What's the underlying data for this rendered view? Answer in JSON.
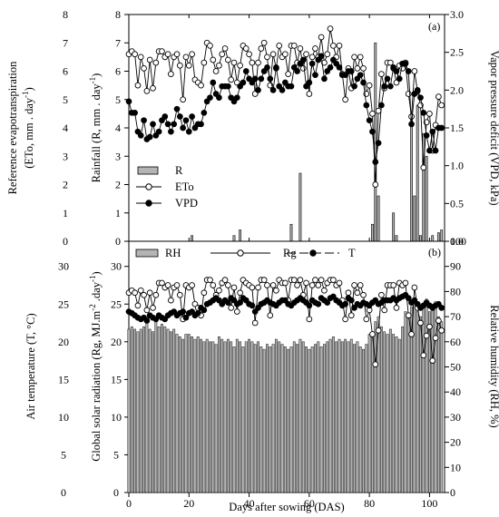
{
  "chart_data": [
    {
      "panel": "(a)",
      "type": "line",
      "left_axis_primary": {
        "label_line1": "Reference evapotranspiration",
        "label_line2": "(ETo, mm . day",
        "label_sup": "-1",
        "label_end": ")",
        "ylim": [
          0,
          8
        ],
        "ticks": [
          0,
          1,
          2,
          3,
          4,
          5,
          6,
          7,
          8
        ]
      },
      "left_axis_secondary": {
        "label": "Rainfall (R, mm . day",
        "label_sup": "-1",
        "label_end": ")",
        "ylim": [
          0,
          8
        ],
        "ticks": [
          0,
          1,
          2,
          3,
          4,
          5,
          6,
          7,
          8
        ]
      },
      "right_axis": {
        "label": "Vapor pressure deficit (VPD, kPa)",
        "ylim": [
          0,
          3.0
        ],
        "ticks": [
          "0.0",
          "0.5",
          "1.0",
          "1.5",
          "2.0",
          "2.5",
          "3.0"
        ]
      },
      "xlim": [
        0,
        105
      ],
      "x_ticks": [
        0,
        20,
        40,
        60,
        80,
        100
      ],
      "legend": [
        "R",
        "ETo",
        "VPD"
      ],
      "series": [
        {
          "name": "R",
          "kind": "bar",
          "x": [
            21,
            35,
            37,
            54,
            57,
            81,
            82,
            83,
            88,
            89,
            94,
            95,
            96,
            97,
            98,
            99,
            101,
            103,
            104
          ],
          "values": [
            0.2,
            0.2,
            0.4,
            0.6,
            2.4,
            0.6,
            7.0,
            1.6,
            1.0,
            0.2,
            4.4,
            1.6,
            4.8,
            0.2,
            3.8,
            3.0,
            0.2,
            0.3,
            0.4
          ]
        },
        {
          "name": "ETo",
          "kind": "line",
          "marker": "open-circle",
          "x_start": 0,
          "values": [
            6.6,
            6.7,
            6.6,
            5.5,
            6.5,
            6.1,
            5.3,
            6.4,
            5.4,
            6.3,
            6.7,
            6.7,
            6.5,
            6.6,
            5.9,
            6.5,
            6.6,
            6.2,
            5.0,
            6.5,
            6.2,
            6.6,
            5.7,
            5.6,
            5.5,
            6.3,
            7.0,
            6.9,
            6.4,
            6.0,
            6.2,
            6.6,
            6.8,
            6.4,
            5.7,
            6.3,
            5.6,
            6.2,
            6.9,
            6.8,
            6.6,
            6.3,
            5.2,
            6.3,
            6.8,
            7.0,
            6.5,
            5.5,
            6.6,
            6.1,
            6.9,
            6.5,
            6.6,
            5.9,
            6.9,
            6.9,
            6.3,
            6.8,
            6.1,
            6.6,
            5.2,
            6.5,
            6.8,
            6.5,
            7.2,
            6.3,
            6.6,
            7.5,
            6.9,
            6.5,
            6.9,
            5.9,
            5.0,
            6.1,
            5.4,
            6.5,
            6.1,
            6.5,
            6.1,
            5.2,
            5.5,
            4.5,
            2.0,
            4.6,
            5.9,
            5.4,
            6.3,
            6.3,
            6.1,
            5.6,
            6.2,
            6.1,
            6.3,
            5.2,
            4.4,
            6.0,
            5.3,
            4.8,
            2.6,
            4.2,
            4.5,
            3.2,
            4.1,
            5.1,
            4.8
          ]
        },
        {
          "name": "VPD",
          "kind": "line",
          "marker": "filled-circle",
          "x_start": 0,
          "values": [
            1.85,
            1.7,
            1.7,
            1.45,
            1.4,
            1.6,
            1.35,
            1.38,
            1.55,
            1.4,
            1.45,
            1.6,
            1.65,
            1.55,
            1.45,
            1.55,
            1.75,
            1.65,
            1.5,
            1.6,
            1.45,
            1.65,
            1.5,
            1.55,
            1.55,
            1.7,
            1.85,
            1.9,
            2.1,
            1.95,
            1.9,
            2.05,
            2.05,
            2.05,
            1.9,
            1.85,
            1.9,
            2.05,
            2.1,
            2.25,
            2.15,
            2.1,
            2.15,
            2.0,
            2.15,
            2.25,
            2.3,
            2.15,
            2.0,
            2.3,
            2.05,
            2.0,
            2.1,
            2.05,
            2.05,
            2.3,
            2.25,
            2.35,
            2.4,
            2.05,
            2.1,
            2.35,
            2.2,
            2.4,
            2.45,
            2.15,
            2.25,
            2.3,
            2.4,
            2.35,
            2.3,
            2.2,
            2.2,
            2.25,
            2.25,
            2.05,
            2.15,
            2.2,
            2.1,
            1.8,
            1.6,
            1.45,
            1.05,
            1.3,
            1.8,
            2.05,
            2.15,
            2.05,
            2.3,
            2.25,
            2.15,
            2.35,
            2.35,
            2.25,
            1.55,
            1.95,
            2.0,
            1.9,
            1.7,
            1.4,
            1.2,
            1.45,
            1.2,
            1.5,
            1.5
          ]
        }
      ]
    },
    {
      "panel": "(b)",
      "type": "bar+line",
      "left_axis_primary": {
        "label": "Air temperature (T, °C)",
        "ylim": [
          0,
          30
        ],
        "ticks": [
          0,
          5,
          10,
          15,
          20,
          25,
          30
        ]
      },
      "left_axis_secondary": {
        "label_start": "Global solar radiation (Rg, MJ.m",
        "label_sup1": "-2",
        "label_mid": " .day",
        "label_sup2": "-1",
        "label_end": ")"
      },
      "right_axis": {
        "label": "Relative humidity (RH, %)",
        "ylim": [
          0,
          100
        ],
        "ticks": [
          0,
          10,
          20,
          30,
          40,
          50,
          60,
          70,
          80,
          90,
          100
        ]
      },
      "xlabel": "Days after sowing (DAS)",
      "xlim": [
        0,
        105
      ],
      "x_ticks": [
        0,
        20,
        40,
        60,
        80,
        100
      ],
      "legend": [
        "RH",
        "Rg",
        "T"
      ],
      "series": [
        {
          "name": "RH",
          "kind": "bar",
          "axis": "right",
          "x_start": 0,
          "values": [
            65,
            66,
            65,
            64,
            65,
            66,
            70,
            65,
            64,
            68,
            66,
            67,
            66,
            65,
            64,
            65,
            63,
            62,
            61,
            63,
            63,
            62,
            61,
            62,
            61,
            60,
            61,
            60,
            60,
            59,
            62,
            61,
            60,
            61,
            60,
            58,
            61,
            60,
            58,
            60,
            61,
            60,
            59,
            60,
            58,
            57,
            59,
            58,
            59,
            61,
            60,
            59,
            58,
            57,
            58,
            60,
            59,
            61,
            60,
            58,
            57,
            58,
            59,
            60,
            58,
            59,
            60,
            61,
            62,
            60,
            61,
            60,
            61,
            60,
            61,
            59,
            60,
            58,
            57,
            59,
            63,
            62,
            68,
            70,
            66,
            64,
            63,
            65,
            63,
            62,
            61,
            66,
            72,
            70,
            74,
            76,
            72,
            70,
            73,
            77,
            72,
            75,
            76,
            70,
            68
          ]
        },
        {
          "name": "Rg",
          "kind": "line",
          "marker": "open-circle",
          "axis": "left",
          "x_start": 0,
          "values": [
            26.5,
            26.8,
            26.5,
            24.8,
            26.8,
            26.2,
            24.2,
            26.5,
            24.5,
            26.2,
            27.8,
            27.8,
            27.2,
            27.5,
            25.5,
            27.2,
            27.5,
            26.2,
            23.0,
            27.5,
            27.2,
            27.5,
            25.0,
            24.5,
            23.5,
            26.5,
            28.2,
            28.2,
            27.5,
            26.2,
            26.8,
            27.8,
            28.2,
            27.5,
            24.5,
            27.2,
            24.0,
            26.5,
            28.2,
            27.8,
            27.5,
            27.2,
            22.5,
            27.2,
            28.2,
            28.2,
            27.5,
            23.5,
            27.5,
            26.8,
            28.2,
            27.8,
            27.8,
            25.5,
            28.2,
            28.2,
            27.5,
            28.2,
            26.2,
            27.8,
            23.0,
            27.5,
            28.2,
            27.5,
            28.2,
            26.8,
            27.8,
            28.2,
            28.2,
            27.5,
            27.8,
            25.5,
            23.0,
            26.5,
            23.5,
            27.5,
            26.5,
            27.5,
            26.2,
            23.0,
            24.2,
            21.0,
            17.0,
            21.5,
            26.2,
            24.2,
            27.5,
            27.5,
            27.5,
            24.5,
            27.8,
            27.5,
            27.8,
            23.5,
            21.0,
            27.2,
            24.5,
            22.5,
            18.2,
            20.8,
            22.0,
            17.5,
            20.5,
            22.8,
            21.5
          ]
        },
        {
          "name": "T",
          "kind": "line",
          "marker": "filled-circle",
          "axis": "left",
          "x_start": 0,
          "values": [
            24.0,
            23.8,
            23.5,
            23.2,
            23.0,
            23.2,
            22.8,
            23.5,
            23.2,
            23.0,
            23.5,
            23.2,
            23.0,
            23.5,
            23.8,
            24.0,
            23.5,
            23.8,
            24.0,
            23.2,
            23.8,
            24.0,
            23.5,
            23.8,
            24.5,
            24.2,
            25.0,
            25.2,
            25.5,
            25.8,
            25.5,
            25.0,
            25.5,
            25.2,
            25.8,
            25.5,
            25.0,
            25.2,
            25.8,
            25.5,
            25.0,
            24.8,
            24.0,
            24.5,
            25.0,
            25.2,
            25.5,
            25.2,
            25.0,
            24.8,
            25.2,
            25.5,
            25.5,
            25.0,
            24.8,
            25.2,
            25.5,
            25.8,
            25.5,
            25.2,
            24.8,
            25.5,
            25.2,
            25.0,
            25.8,
            25.5,
            25.2,
            25.8,
            26.0,
            25.5,
            25.2,
            24.8,
            25.0,
            25.8,
            25.5,
            24.5,
            25.0,
            24.8,
            25.2,
            25.0,
            24.8,
            25.2,
            25.5,
            25.0,
            25.2,
            25.5,
            25.5,
            25.5,
            25.8,
            25.5,
            25.8,
            26.0,
            26.2,
            25.8,
            25.2,
            25.5,
            25.0,
            24.5,
            24.8,
            25.2,
            24.8,
            24.5,
            24.8,
            25.0,
            24.5
          ]
        }
      ]
    }
  ]
}
